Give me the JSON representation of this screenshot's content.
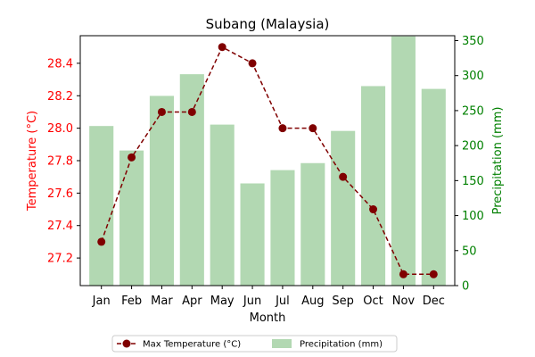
{
  "chart_data": {
    "type": "bar+line",
    "title": "Subang (Malaysia)",
    "xlabel": "Month",
    "categories": [
      "Jan",
      "Feb",
      "Mar",
      "Apr",
      "May",
      "Jun",
      "Jul",
      "Aug",
      "Sep",
      "Oct",
      "Nov",
      "Dec"
    ],
    "left_axis": {
      "label": "Temperature (°C)",
      "color": "#ff0000",
      "ylim": [
        27.03,
        28.57
      ],
      "ticks": [
        "27.2",
        "27.4",
        "27.6",
        "27.8",
        "28.0",
        "28.2",
        "28.4"
      ]
    },
    "right_axis": {
      "label": "Precipitation (mm)",
      "color": "#008000",
      "ylim": [
        0,
        357
      ],
      "ticks": [
        "0",
        "50",
        "100",
        "150",
        "200",
        "250",
        "300",
        "350"
      ]
    },
    "series": [
      {
        "name": "Max Temperature (°C)",
        "type": "line",
        "axis": "left",
        "color": "#800000",
        "line_style": "dashed",
        "marker": "circle",
        "values": [
          27.3,
          27.82,
          28.1,
          28.1,
          28.5,
          28.4,
          28.0,
          28.0,
          27.7,
          27.5,
          27.1,
          27.1
        ]
      },
      {
        "name": "Precipitation (mm)",
        "type": "bar",
        "axis": "right",
        "color": "#b2d8b2",
        "values": [
          228,
          193,
          271,
          302,
          230,
          146,
          165,
          175,
          221,
          285,
          356,
          281
        ]
      }
    ],
    "grid": false,
    "legend_position": "bottom-center"
  }
}
